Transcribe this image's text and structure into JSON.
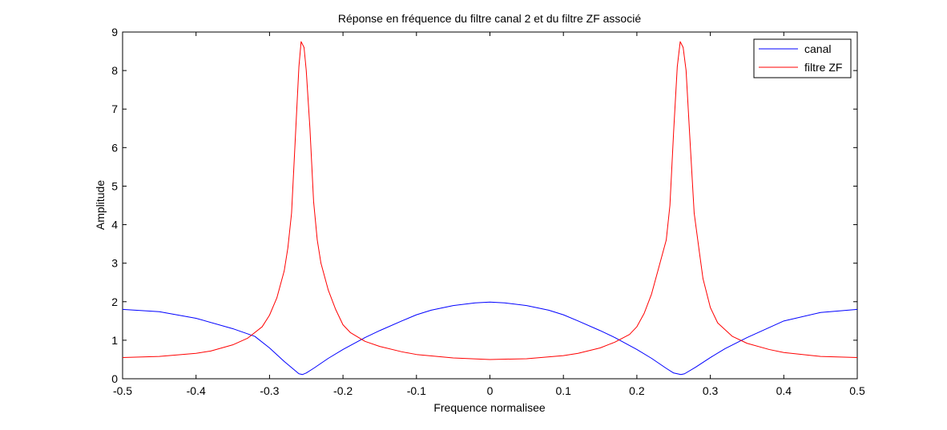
{
  "chart_data": {
    "type": "line",
    "title": "Réponse en fréquence du filtre canal 2 et du filtre ZF associé",
    "xlabel": "Frequence normalisee",
    "ylabel": "Amplitude",
    "xlim": [
      -0.5,
      0.5
    ],
    "ylim": [
      0,
      9
    ],
    "xticks": [
      "-0.5",
      "-0.4",
      "-0.3",
      "-0.2",
      "-0.1",
      "0",
      "0.1",
      "0.2",
      "0.3",
      "0.4",
      "0.5"
    ],
    "yticks": [
      "0",
      "1",
      "2",
      "3",
      "4",
      "5",
      "6",
      "7",
      "8",
      "9"
    ],
    "grid": false,
    "legend_position": "top-right",
    "series": [
      {
        "name": "canal",
        "color": "#0000ff",
        "points": [
          [
            -0.5,
            1.8
          ],
          [
            -0.45,
            1.74
          ],
          [
            -0.4,
            1.57
          ],
          [
            -0.35,
            1.3
          ],
          [
            -0.32,
            1.1
          ],
          [
            -0.3,
            0.8
          ],
          [
            -0.28,
            0.45
          ],
          [
            -0.26,
            0.13
          ],
          [
            -0.255,
            0.11
          ],
          [
            -0.25,
            0.15
          ],
          [
            -0.24,
            0.27
          ],
          [
            -0.22,
            0.53
          ],
          [
            -0.2,
            0.76
          ],
          [
            -0.17,
            1.07
          ],
          [
            -0.15,
            1.25
          ],
          [
            -0.12,
            1.5
          ],
          [
            -0.1,
            1.66
          ],
          [
            -0.08,
            1.78
          ],
          [
            -0.05,
            1.9
          ],
          [
            -0.02,
            1.97
          ],
          [
            0,
            1.99
          ],
          [
            0.02,
            1.97
          ],
          [
            0.05,
            1.9
          ],
          [
            0.08,
            1.78
          ],
          [
            0.1,
            1.66
          ],
          [
            0.12,
            1.5
          ],
          [
            0.15,
            1.25
          ],
          [
            0.17,
            1.07
          ],
          [
            0.2,
            0.76
          ],
          [
            0.22,
            0.53
          ],
          [
            0.24,
            0.27
          ],
          [
            0.25,
            0.15
          ],
          [
            0.26,
            0.11
          ],
          [
            0.265,
            0.13
          ],
          [
            0.28,
            0.3
          ],
          [
            0.3,
            0.55
          ],
          [
            0.32,
            0.78
          ],
          [
            0.35,
            1.07
          ],
          [
            0.4,
            1.5
          ],
          [
            0.45,
            1.72
          ],
          [
            0.5,
            1.8
          ]
        ]
      },
      {
        "name": "filtre ZF",
        "color": "#ff0000",
        "points": [
          [
            -0.5,
            0.55
          ],
          [
            -0.45,
            0.58
          ],
          [
            -0.4,
            0.66
          ],
          [
            -0.38,
            0.72
          ],
          [
            -0.35,
            0.88
          ],
          [
            -0.33,
            1.05
          ],
          [
            -0.31,
            1.35
          ],
          [
            -0.3,
            1.65
          ],
          [
            -0.29,
            2.1
          ],
          [
            -0.28,
            2.8
          ],
          [
            -0.275,
            3.4
          ],
          [
            -0.27,
            4.3
          ],
          [
            -0.265,
            6.2
          ],
          [
            -0.26,
            8.1
          ],
          [
            -0.257,
            8.75
          ],
          [
            -0.253,
            8.6
          ],
          [
            -0.25,
            8.0
          ],
          [
            -0.245,
            6.5
          ],
          [
            -0.24,
            4.6
          ],
          [
            -0.235,
            3.6
          ],
          [
            -0.23,
            3.0
          ],
          [
            -0.22,
            2.3
          ],
          [
            -0.21,
            1.8
          ],
          [
            -0.2,
            1.4
          ],
          [
            -0.19,
            1.2
          ],
          [
            -0.17,
            0.97
          ],
          [
            -0.15,
            0.84
          ],
          [
            -0.12,
            0.7
          ],
          [
            -0.1,
            0.63
          ],
          [
            -0.05,
            0.54
          ],
          [
            0,
            0.5
          ],
          [
            0.05,
            0.52
          ],
          [
            0.1,
            0.6
          ],
          [
            0.12,
            0.66
          ],
          [
            0.15,
            0.8
          ],
          [
            0.17,
            0.95
          ],
          [
            0.19,
            1.15
          ],
          [
            0.2,
            1.35
          ],
          [
            0.21,
            1.7
          ],
          [
            0.22,
            2.2
          ],
          [
            0.23,
            2.9
          ],
          [
            0.24,
            3.6
          ],
          [
            0.245,
            4.5
          ],
          [
            0.25,
            6.4
          ],
          [
            0.255,
            8.1
          ],
          [
            0.259,
            8.75
          ],
          [
            0.263,
            8.6
          ],
          [
            0.267,
            8.0
          ],
          [
            0.272,
            6.3
          ],
          [
            0.278,
            4.3
          ],
          [
            0.285,
            3.3
          ],
          [
            0.29,
            2.6
          ],
          [
            0.3,
            1.85
          ],
          [
            0.31,
            1.45
          ],
          [
            0.33,
            1.1
          ],
          [
            0.35,
            0.92
          ],
          [
            0.38,
            0.76
          ],
          [
            0.4,
            0.68
          ],
          [
            0.45,
            0.58
          ],
          [
            0.5,
            0.55
          ]
        ]
      }
    ]
  }
}
